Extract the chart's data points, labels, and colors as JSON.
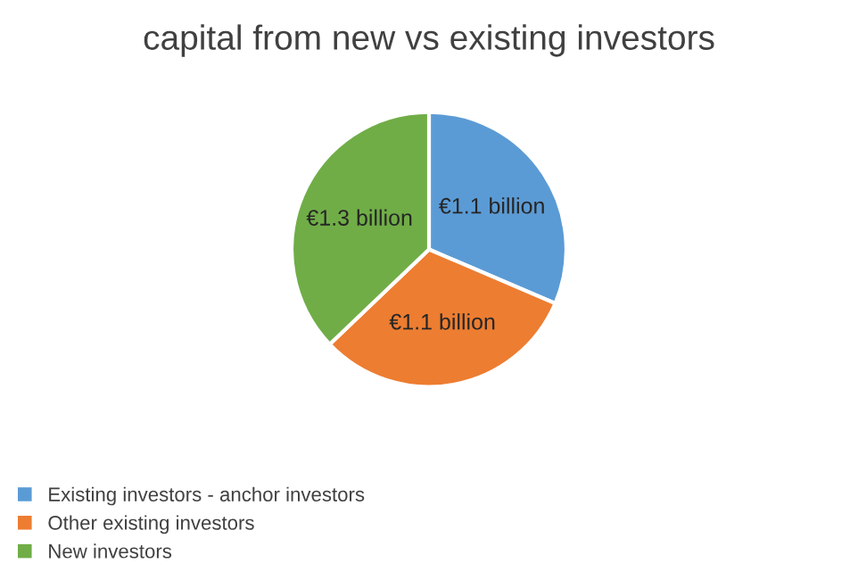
{
  "chart_data": {
    "type": "pie",
    "title": "capital from new vs existing investors",
    "categories": [
      "Existing investors - anchor investors",
      "Other existing investors",
      "New investors"
    ],
    "values": [
      1.1,
      1.1,
      1.3
    ],
    "value_labels": [
      "€1.1 billion",
      "€1.1 billion",
      "€1.3 billion"
    ],
    "colors": [
      "#5b9bd5",
      "#ed7d31",
      "#70ad47"
    ],
    "legend": "bottom left"
  }
}
